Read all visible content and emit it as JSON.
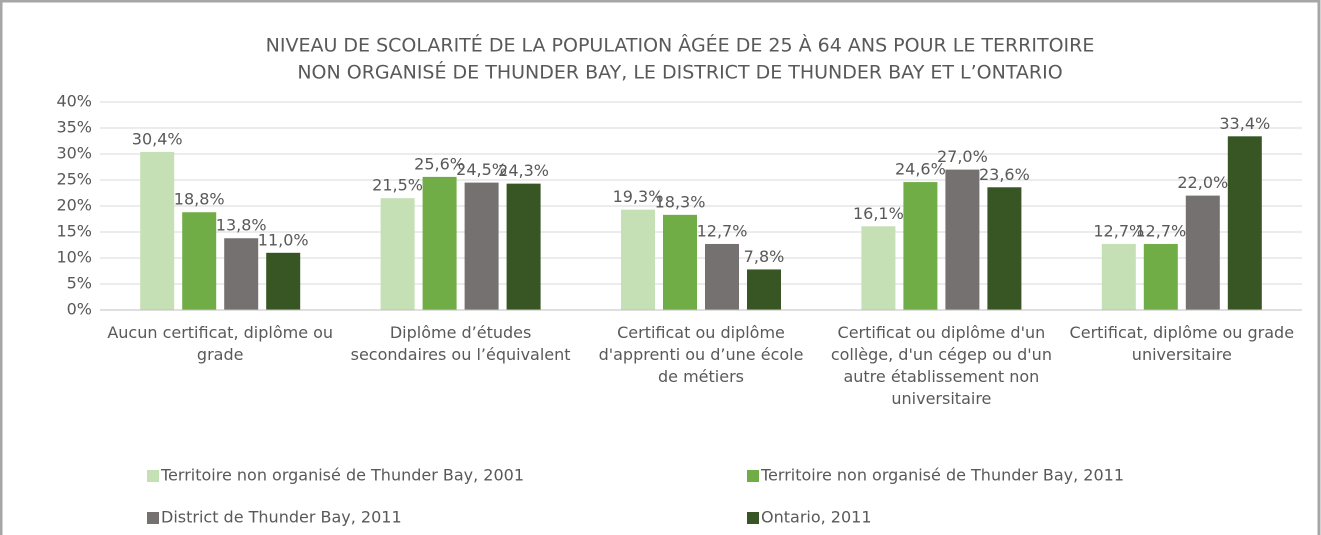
{
  "chart_data": {
    "type": "bar",
    "title": [
      "NIVEAU DE SCOLARITÉ DE LA POPULATION ÂGÉE DE 25 À 64 ANS POUR LE TERRITOIRE",
      "NON ORGANISÉ DE THUNDER BAY, LE DISTRICT DE THUNDER BAY ET L’ONTARIO"
    ],
    "categories": [
      "Aucun certificat, diplôme ou grade",
      "Diplôme d’études secondaires ou l’équivalent",
      "Certificat ou diplôme d'apprenti ou d’une école de métiers",
      "Certificat ou diplôme d'un collège, d'un cégep ou d'un autre établissement non universitaire",
      "Certificat, diplôme ou grade universitaire"
    ],
    "series": [
      {
        "name": "Territoire non organisé de Thunder Bay, 2001",
        "color": "#c5e0b4",
        "values": [
          30.4,
          21.5,
          19.3,
          16.1,
          12.7
        ],
        "value_labels": [
          "30,4%",
          "21,5%",
          "19,3%",
          "16,1%",
          "12,7%"
        ]
      },
      {
        "name": "Territoire non organisé de Thunder Bay, 2011",
        "color": "#70ad47",
        "values": [
          18.8,
          25.6,
          18.3,
          24.6,
          12.7
        ],
        "value_labels": [
          "18,8%",
          "25,6%",
          "18,3%",
          "24,6%",
          "12,7%"
        ]
      },
      {
        "name": "District de Thunder Bay, 2011",
        "color": "#767171",
        "values": [
          13.8,
          24.5,
          12.7,
          27.0,
          22.0
        ],
        "value_labels": [
          "13,8%",
          "24,5%",
          "12,7%",
          "27,0%",
          "22,0%"
        ]
      },
      {
        "name": "Ontario, 2011",
        "color": "#375623",
        "values": [
          11.0,
          24.3,
          7.8,
          23.6,
          33.4
        ],
        "value_labels": [
          "11,0%",
          "24,3%",
          "7,8%",
          "23,6%",
          "33,4%"
        ]
      }
    ],
    "ylim": [
      0,
      40
    ],
    "yticks": [
      {
        "value": 0,
        "label": "0%"
      },
      {
        "value": 5,
        "label": "5%"
      },
      {
        "value": 10,
        "label": "10%"
      },
      {
        "value": 15,
        "label": "15%"
      },
      {
        "value": 20,
        "label": "20%"
      },
      {
        "value": 25,
        "label": "25%"
      },
      {
        "value": 30,
        "label": "30%"
      },
      {
        "value": 35,
        "label": "35%"
      },
      {
        "value": 40,
        "label": "40%"
      }
    ],
    "grid": true
  }
}
